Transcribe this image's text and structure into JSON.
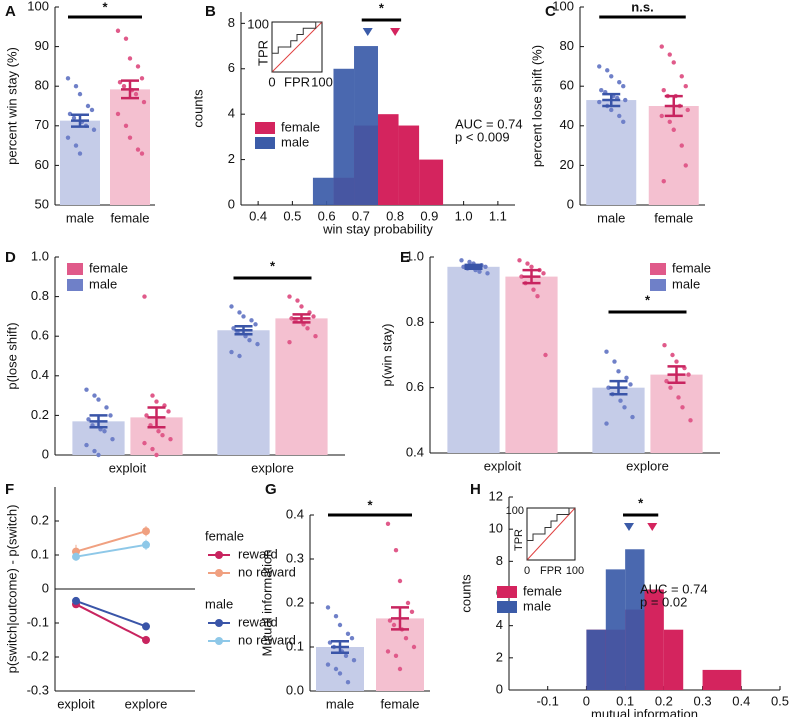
{
  "chart_data": [
    {
      "type": "bar",
      "label": "A",
      "ylabel": "percent win stay (%)",
      "categories": [
        "male",
        "female"
      ],
      "values": [
        71.3,
        79.2
      ],
      "errors": [
        1.5,
        2.2
      ],
      "points": [
        [
          82,
          80,
          78,
          75,
          74,
          73,
          72,
          71,
          70,
          69,
          67,
          65,
          63
        ],
        [
          94,
          92,
          87,
          85,
          82,
          81,
          80,
          79,
          78,
          76,
          73,
          70,
          67,
          64,
          63
        ]
      ],
      "colors": [
        "#c5cce8",
        "#f4c0d0"
      ],
      "point_colors": [
        "#6f80c8",
        "#e05a8a"
      ],
      "error_colors": [
        "#3a55a8",
        "#c8245f"
      ],
      "ylim": [
        50,
        100
      ],
      "yticks": [
        50,
        60,
        70,
        80,
        90,
        100
      ],
      "significance": "*"
    },
    {
      "type": "histogram",
      "label": "B",
      "xlabel": "win stay probability",
      "ylabel": "counts",
      "series": [
        {
          "name": "female",
          "color": "#d4245e",
          "bins": [
            0.62,
            0.68,
            0.75,
            0.81,
            0.87,
            0.94
          ],
          "counts": [
            1.2,
            3.5,
            4,
            3.5,
            2
          ],
          "mean": 0.8
        },
        {
          "name": "male",
          "color": "#3b5ba8",
          "bins": [
            0.56,
            0.62,
            0.68,
            0.75
          ],
          "counts": [
            1.2,
            6,
            7
          ],
          "mean": 0.72
        }
      ],
      "xlim": [
        0.35,
        1.15
      ],
      "xticks": [
        0.4,
        0.5,
        0.6,
        0.7,
        0.8,
        0.9,
        {
          "value": 1,
          "label": "1.0"
        },
        1.1
      ],
      "ylim": [
        0,
        8.5
      ],
      "yticks": [
        0,
        2,
        4,
        6,
        8
      ],
      "significance": "*",
      "annotations": [
        "AUC = 0.74",
        "p < 0.009"
      ],
      "inset": {
        "xlabel": "FPR",
        "ylabel": "TPR",
        "xticks": [
          0,
          100
        ],
        "yticks": [
          100
        ]
      }
    },
    {
      "type": "bar",
      "label": "C",
      "ylabel": "percent lose shift (%)",
      "categories": [
        "male",
        "female"
      ],
      "values": [
        53,
        50
      ],
      "errors": [
        3,
        5
      ],
      "points": [
        [
          70,
          68,
          65,
          62,
          60,
          58,
          57,
          55,
          54,
          53,
          52,
          50,
          48,
          45,
          42
        ],
        [
          80,
          76,
          72,
          65,
          60,
          58,
          55,
          55,
          50,
          48,
          45,
          42,
          38,
          30,
          20,
          12
        ]
      ],
      "colors": [
        "#c5cce8",
        "#f4c0d0"
      ],
      "point_colors": [
        "#6f80c8",
        "#e05a8a"
      ],
      "error_colors": [
        "#3a55a8",
        "#c8245f"
      ],
      "ylim": [
        0,
        100
      ],
      "yticks": [
        0,
        20,
        40,
        60,
        80,
        100
      ],
      "significance": "n.s."
    },
    {
      "type": "grouped_bar",
      "label": "D",
      "ylabel": "p(lose shift)",
      "groups": [
        "exploit",
        "explore"
      ],
      "series": [
        {
          "name": "male",
          "color": "#c5cce8",
          "point_color": "#6f80c8",
          "error_color": "#3a55a8",
          "values": [
            0.17,
            0.63
          ],
          "errors": [
            0.03,
            0.02
          ],
          "points": [
            [
              0.33,
              0.3,
              0.28,
              0.24,
              0.2,
              0.18,
              0.15,
              0.13,
              0.12,
              0.08,
              0.05,
              0.02,
              0
            ],
            [
              0.75,
              0.72,
              0.7,
              0.68,
              0.66,
              0.64,
              0.62,
              0.6,
              0.58,
              0.56,
              0.52,
              0.5
            ]
          ]
        },
        {
          "name": "female",
          "color": "#f4c0d0",
          "point_color": "#e05a8a",
          "error_color": "#c8245f",
          "values": [
            0.19,
            0.69
          ],
          "errors": [
            0.05,
            0.02
          ],
          "points": [
            [
              0.8,
              0.3,
              0.27,
              0.25,
              0.22,
              0.2,
              0.15,
              0.12,
              0.1,
              0.08,
              0.06,
              0.03,
              0
            ],
            [
              0.8,
              0.78,
              0.75,
              0.72,
              0.7,
              0.69,
              0.68,
              0.66,
              0.64,
              0.6,
              0.57
            ]
          ]
        }
      ],
      "ylim": [
        0,
        1
      ],
      "yticks": [
        0,
        0.2,
        0.4,
        0.6,
        0.8,
        {
          "value": 1,
          "label": "1.0"
        }
      ],
      "significance": [
        null,
        "*"
      ],
      "legend": "upper left"
    },
    {
      "type": "grouped_bar",
      "label": "E",
      "ylabel": "p(win stay)",
      "groups": [
        "exploit",
        "explore"
      ],
      "series": [
        {
          "name": "male",
          "color": "#c5cce8",
          "point_color": "#6f80c8",
          "error_color": "#3a55a8",
          "values": [
            0.97,
            0.6
          ],
          "errors": [
            0.006,
            0.02
          ],
          "points": [
            [
              0.99,
              0.985,
              0.98,
              0.975,
              0.97,
              0.97,
              0.965,
              0.96,
              0.955,
              0.95
            ],
            [
              0.71,
              0.68,
              0.65,
              0.63,
              0.61,
              0.6,
              0.58,
              0.56,
              0.54,
              0.51,
              0.49
            ]
          ]
        },
        {
          "name": "female",
          "color": "#f4c0d0",
          "point_color": "#e05a8a",
          "error_color": "#c8245f",
          "values": [
            0.94,
            0.64
          ],
          "errors": [
            0.02,
            0.025
          ],
          "points": [
            [
              0.99,
              0.98,
              0.97,
              0.96,
              0.95,
              0.94,
              0.92,
              0.9,
              0.88,
              0.7
            ],
            [
              0.73,
              0.7,
              0.68,
              0.66,
              0.64,
              0.62,
              0.6,
              0.57,
              0.54,
              0.5
            ]
          ]
        }
      ],
      "ylim": [
        0.4,
        1
      ],
      "yticks": [
        0.4,
        0.6,
        0.8,
        {
          "value": 1,
          "label": "1.0"
        }
      ],
      "significance": [
        null,
        "*"
      ],
      "legend": "upper right"
    },
    {
      "type": "line",
      "label": "F",
      "ylabel": "p(switch|outcome) - p(switch)",
      "categories": [
        "exploit",
        "explore"
      ],
      "series": [
        {
          "group": "female",
          "name": "reward",
          "color": "#c8245f",
          "values": [
            -0.045,
            -0.15
          ],
          "errors": [
            0.01,
            0.012
          ]
        },
        {
          "group": "female",
          "name": "no reward",
          "color": "#f0a080",
          "values": [
            0.11,
            0.17
          ],
          "errors": [
            0.02,
            0.015
          ]
        },
        {
          "group": "male",
          "name": "reward",
          "color": "#3a55a8",
          "values": [
            -0.035,
            -0.11
          ],
          "errors": [
            0.01,
            0.012
          ]
        },
        {
          "group": "male",
          "name": "no reward",
          "color": "#8ec8e8",
          "values": [
            0.095,
            0.13
          ],
          "errors": [
            0.012,
            0.015
          ]
        }
      ],
      "ylim": [
        -0.3,
        0.3
      ],
      "yticks": [
        -0.3,
        -0.2,
        -0.1,
        0,
        0.1,
        0.2
      ]
    },
    {
      "type": "bar",
      "label": "G",
      "ylabel": "Mutual information",
      "categories": [
        "male",
        "female"
      ],
      "values": [
        0.1,
        0.165
      ],
      "errors": [
        0.013,
        0.025
      ],
      "points": [
        [
          0.19,
          0.17,
          0.15,
          0.13,
          0.12,
          0.11,
          0.1,
          0.09,
          0.08,
          0.07,
          0.06,
          0.05,
          0.04,
          0.02
        ],
        [
          0.38,
          0.32,
          0.25,
          0.2,
          0.18,
          0.16,
          0.15,
          0.14,
          0.12,
          0.1,
          0.09,
          0.08,
          0.05
        ]
      ],
      "colors": [
        "#c5cce8",
        "#f4c0d0"
      ],
      "point_colors": [
        "#6f80c8",
        "#e05a8a"
      ],
      "error_colors": [
        "#3a55a8",
        "#c8245f"
      ],
      "ylim": [
        0,
        0.4
      ],
      "yticks": [
        {
          "value": 0,
          "label": "0.0"
        },
        0.1,
        0.2,
        0.3,
        0.4
      ],
      "significance": "*"
    },
    {
      "type": "histogram",
      "label": "H",
      "xlabel": "mutual information",
      "ylabel": "counts",
      "series": [
        {
          "name": "female",
          "color": "#d4245e",
          "bins": [
            0,
            0.1,
            0.15,
            0.2,
            0.25,
            0.3,
            0.4
          ],
          "counts": [
            3.75,
            5,
            6.25,
            3.75,
            0,
            1.25
          ],
          "mean": 0.17
        },
        {
          "name": "male",
          "color": "#3b5ba8",
          "bins": [
            0,
            0.05,
            0.1,
            0.15
          ],
          "counts": [
            3.75,
            7.5,
            8.75
          ],
          "mean": 0.11
        }
      ],
      "xlim": [
        -0.2,
        0.5
      ],
      "xticks": [
        -0.1,
        0,
        0.1,
        0.2,
        0.3,
        0.4,
        0.5
      ],
      "ylim": [
        0,
        12
      ],
      "yticks": [
        0,
        2,
        4,
        6,
        8,
        10,
        12
      ],
      "significance": "*",
      "annotations": [
        "AUC = 0.74",
        "p = 0.02"
      ],
      "inset": {
        "xlabel": "FPR",
        "ylabel": "TPR",
        "xticks": [
          0,
          100
        ],
        "yticks": [
          100
        ]
      }
    }
  ]
}
